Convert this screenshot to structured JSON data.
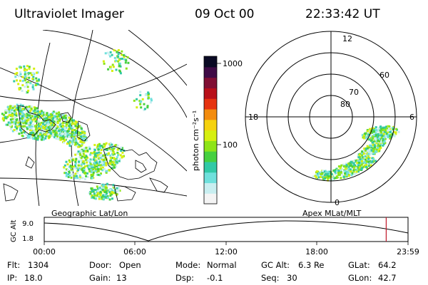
{
  "header": {
    "instrument": "Ultraviolet Imager",
    "date": "09 Oct 00",
    "time": "22:33:42 UT"
  },
  "colorbar": {
    "unit_label": "photon cm⁻²s⁻¹",
    "ticks": [
      {
        "label": "1000",
        "value": 1000
      },
      {
        "label": "100",
        "value": 100
      }
    ],
    "colors": [
      "#f4f4f4",
      "#c8eef0",
      "#6fe0dc",
      "#31c9a6",
      "#46d040",
      "#8ee418",
      "#d6ef10",
      "#f5d20e",
      "#f38c0e",
      "#e63310",
      "#b8101a",
      "#800f34",
      "#3f0b46",
      "#0a0a24"
    ]
  },
  "polar_plot": {
    "mlt_labels": {
      "top": "12",
      "left": "18",
      "right": "6",
      "bottom": "0"
    },
    "mlat_labels": [
      "80",
      "70",
      "60"
    ]
  },
  "geo_map": {
    "caption": "Geographic Lat/Lon"
  },
  "timeline": {
    "ylabel": "GC Alt",
    "ytick_top": "9.0",
    "ytick_bottom": "1.8",
    "right_caption": "Apex MLat/MLT",
    "xticks": [
      "00:00",
      "06:00",
      "12:00",
      "18:00",
      "23:59"
    ],
    "current_marker_fraction": 0.94,
    "marker_color": "#c0182a"
  },
  "info": {
    "row1": [
      {
        "label": "Flt:",
        "value": "1304"
      },
      {
        "label": "Door:",
        "value": "Open"
      },
      {
        "label": "Mode:",
        "value": "Normal"
      },
      {
        "label": "GC Alt:",
        "value": "6.3 Re"
      },
      {
        "label": "GLat:",
        "value": "64.2"
      }
    ],
    "row2": [
      {
        "label": "IP:",
        "value": "18.0"
      },
      {
        "label": "Gain:",
        "value": "13"
      },
      {
        "label": "Dsp:",
        "value": "-0.1"
      },
      {
        "label": "Seq:",
        "value": "30"
      },
      {
        "label": "GLon:",
        "value": "42.7"
      }
    ]
  }
}
